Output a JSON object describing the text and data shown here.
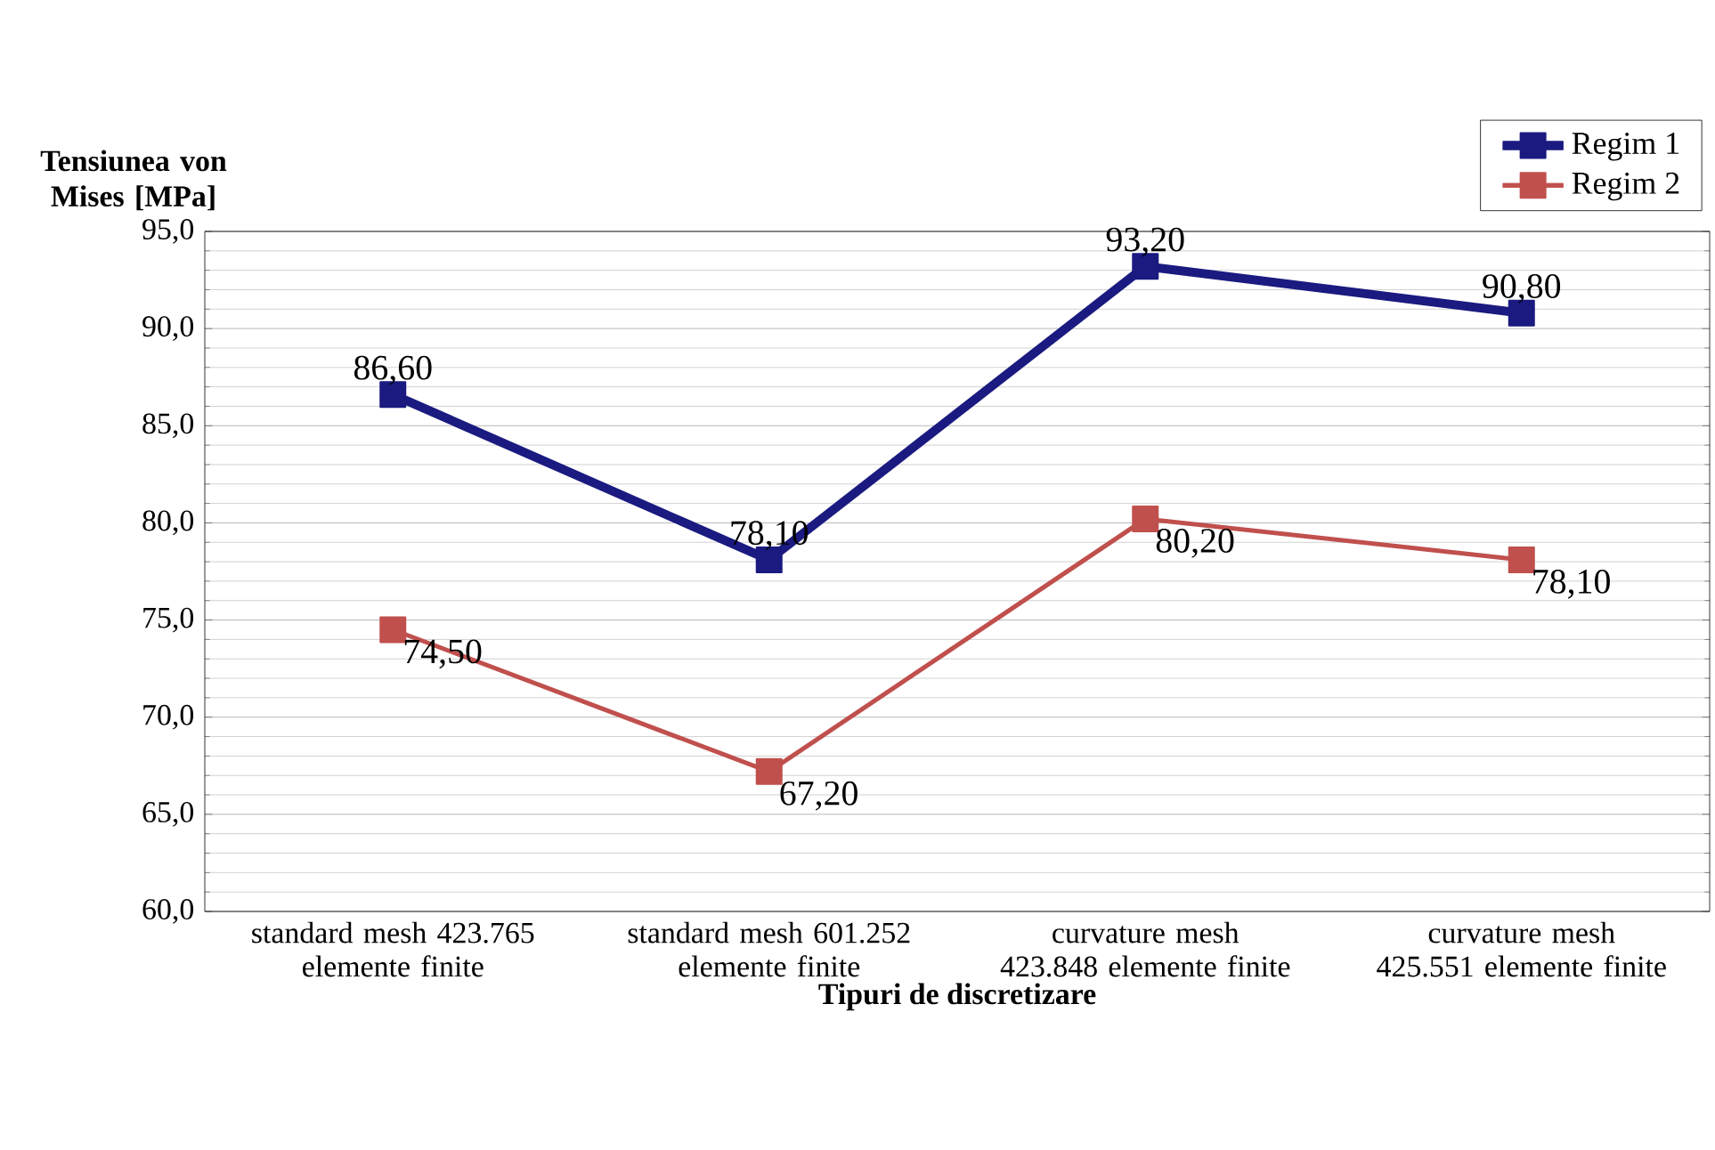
{
  "chart_data": {
    "type": "line",
    "ylabel": "Tensiunea von Mises [MPa]",
    "xlabel": "Tipuri de discretizare",
    "categories": [
      "standard mesh 423.765 elemente finite",
      "standard mesh 601.252 elemente finite",
      "curvature mesh 423.848 elemente finite",
      "curvature mesh 425.551 elemente finite"
    ],
    "series": [
      {
        "name": "Regim 1",
        "color": "#1a1a80",
        "values": [
          86.6,
          78.1,
          93.2,
          90.8
        ],
        "value_labels": [
          "86,60",
          "78,10",
          "93,20",
          "90,80"
        ]
      },
      {
        "name": "Regim 2",
        "color": "#c0504d",
        "values": [
          74.5,
          67.2,
          80.2,
          78.1
        ],
        "value_labels": [
          "74,50",
          "67,20",
          "80,20",
          "78,10"
        ]
      }
    ],
    "ylim": [
      60,
      95
    ],
    "yticks": [
      {
        "value": 60,
        "label": "60,0"
      },
      {
        "value": 65,
        "label": "65,0"
      },
      {
        "value": 70,
        "label": "70,0"
      },
      {
        "value": 75,
        "label": "75,0"
      },
      {
        "value": 80,
        "label": "80,0"
      },
      {
        "value": 85,
        "label": "85,0"
      },
      {
        "value": 90,
        "label": "90,0"
      },
      {
        "value": 95,
        "label": "95,0"
      }
    ],
    "grid": "y",
    "legend": "top right",
    "marker": "square",
    "line_style": "solid"
  }
}
